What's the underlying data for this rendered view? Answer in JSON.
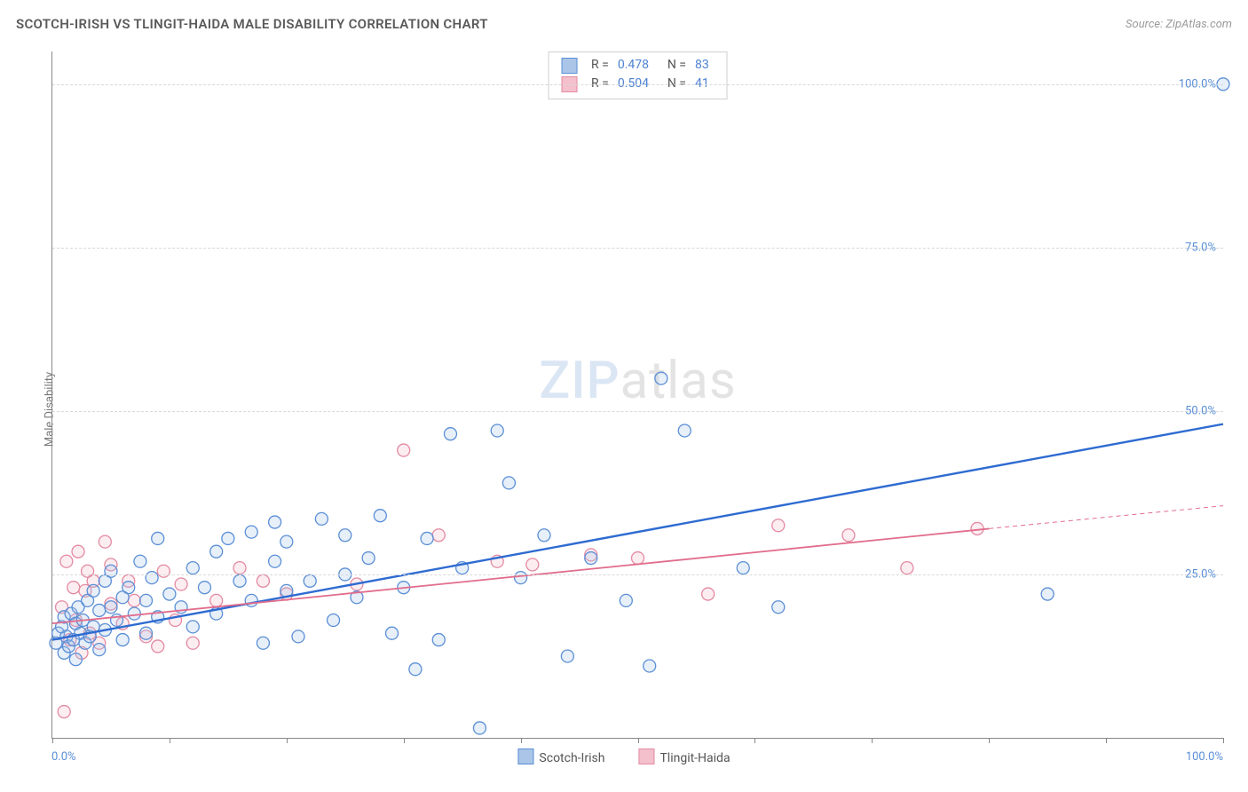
{
  "header": {
    "title": "SCOTCH-IRISH VS TLINGIT-HAIDA MALE DISABILITY CORRELATION CHART",
    "source": "Source: ZipAtlas.com"
  },
  "watermark": {
    "part1": "ZIP",
    "part2": "atlas"
  },
  "chart": {
    "type": "scatter",
    "ylabel": "Male Disability",
    "background_color": "#ffffff",
    "grid_color": "#d9d9d9",
    "axis_color": "#888888",
    "ylabel_color": "#787878",
    "tick_label_color": "#5b8fd6",
    "xlim": [
      0,
      100
    ],
    "ylim": [
      0,
      105
    ],
    "x_tick_positions": [
      0,
      10,
      20,
      30,
      40,
      50,
      60,
      70,
      80,
      90,
      100
    ],
    "x_axis_labels": {
      "left": "0.0%",
      "right": "100.0%"
    },
    "y_gridlines": [
      {
        "value": 25,
        "label": "25.0%"
      },
      {
        "value": 50,
        "label": "50.0%"
      },
      {
        "value": 75,
        "label": "75.0%"
      },
      {
        "value": 100,
        "label": "100.0%"
      }
    ],
    "marker": {
      "radius": 7,
      "stroke_width": 1.3,
      "fill_opacity": 0.28
    },
    "series": [
      {
        "name": "Scotch-Irish",
        "color_stroke": "#5b8fd6",
        "color_fill": "#aac5e8",
        "line_color": "#2e6bd1",
        "line_width": 2.4,
        "trend": {
          "x1": 0,
          "y1": 15.0,
          "x2": 100,
          "y2": 48.0
        },
        "extrap": null,
        "stats": {
          "R": "0.478",
          "N": "83"
        },
        "points": [
          [
            0.3,
            14.5
          ],
          [
            0.5,
            16.0
          ],
          [
            0.8,
            17.0
          ],
          [
            1.0,
            13.0
          ],
          [
            1.0,
            18.5
          ],
          [
            1.2,
            15.5
          ],
          [
            1.4,
            14.0
          ],
          [
            1.6,
            19.0
          ],
          [
            1.8,
            15.0
          ],
          [
            2.0,
            17.5
          ],
          [
            2.0,
            12.0
          ],
          [
            2.2,
            20.0
          ],
          [
            2.4,
            16.0
          ],
          [
            2.6,
            18.0
          ],
          [
            2.8,
            14.5
          ],
          [
            3.0,
            21.0
          ],
          [
            3.2,
            15.5
          ],
          [
            3.5,
            22.5
          ],
          [
            3.5,
            17.0
          ],
          [
            4.0,
            19.5
          ],
          [
            4.0,
            13.5
          ],
          [
            4.5,
            24.0
          ],
          [
            4.5,
            16.5
          ],
          [
            5.0,
            20.0
          ],
          [
            5.0,
            25.5
          ],
          [
            5.5,
            18.0
          ],
          [
            6.0,
            21.5
          ],
          [
            6.0,
            15.0
          ],
          [
            6.5,
            23.0
          ],
          [
            7.0,
            19.0
          ],
          [
            7.5,
            27.0
          ],
          [
            8.0,
            21.0
          ],
          [
            8.0,
            16.0
          ],
          [
            8.5,
            24.5
          ],
          [
            9.0,
            18.5
          ],
          [
            9.0,
            30.5
          ],
          [
            10,
            22.0
          ],
          [
            11,
            20.0
          ],
          [
            12,
            26.0
          ],
          [
            12,
            17.0
          ],
          [
            13,
            23.0
          ],
          [
            14,
            28.5
          ],
          [
            14,
            19.0
          ],
          [
            15,
            30.5
          ],
          [
            16,
            24.0
          ],
          [
            17,
            21.0
          ],
          [
            17,
            31.5
          ],
          [
            18,
            14.5
          ],
          [
            19,
            27.0
          ],
          [
            19,
            33.0
          ],
          [
            20,
            22.5
          ],
          [
            20,
            30.0
          ],
          [
            21,
            15.5
          ],
          [
            22,
            24.0
          ],
          [
            23,
            33.5
          ],
          [
            24,
            18.0
          ],
          [
            25,
            31.0
          ],
          [
            25,
            25.0
          ],
          [
            26,
            21.5
          ],
          [
            27,
            27.5
          ],
          [
            28,
            34.0
          ],
          [
            29,
            16.0
          ],
          [
            30,
            23.0
          ],
          [
            31,
            10.5
          ],
          [
            32,
            30.5
          ],
          [
            33,
            15.0
          ],
          [
            34,
            46.5
          ],
          [
            35,
            26.0
          ],
          [
            36.5,
            1.5
          ],
          [
            38,
            47.0
          ],
          [
            39,
            39.0
          ],
          [
            40,
            24.5
          ],
          [
            42,
            31.0
          ],
          [
            44,
            12.5
          ],
          [
            46,
            27.5
          ],
          [
            49,
            21.0
          ],
          [
            51,
            11.0
          ],
          [
            52,
            55.0
          ],
          [
            54,
            47.0
          ],
          [
            59,
            26.0
          ],
          [
            62,
            20.0
          ],
          [
            85,
            22.0
          ],
          [
            100,
            100.0
          ]
        ]
      },
      {
        "name": "Tlingit-Haida",
        "color_stroke": "#e48aa1",
        "color_fill": "#f3c0cc",
        "line_color": "#e16d8c",
        "line_width": 1.8,
        "trend": {
          "x1": 0,
          "y1": 17.5,
          "x2": 80,
          "y2": 32.0
        },
        "extrap": {
          "x1": 80,
          "y1": 32.0,
          "x2": 100,
          "y2": 35.5
        },
        "stats": {
          "R": "0.504",
          "N": "41"
        },
        "points": [
          [
            0.8,
            20.0
          ],
          [
            1.0,
            4.0
          ],
          [
            1.2,
            27.0
          ],
          [
            1.5,
            15.0
          ],
          [
            1.8,
            23.0
          ],
          [
            2.0,
            18.0
          ],
          [
            2.2,
            28.5
          ],
          [
            2.5,
            13.0
          ],
          [
            2.8,
            22.5
          ],
          [
            3.0,
            25.5
          ],
          [
            3.2,
            16.0
          ],
          [
            3.5,
            24.0
          ],
          [
            4.0,
            14.5
          ],
          [
            4.5,
            30.0
          ],
          [
            5.0,
            20.5
          ],
          [
            5.0,
            26.5
          ],
          [
            6.0,
            17.5
          ],
          [
            6.5,
            24.0
          ],
          [
            7.0,
            21.0
          ],
          [
            8.0,
            15.5
          ],
          [
            9.0,
            14.0
          ],
          [
            9.5,
            25.5
          ],
          [
            10.5,
            18.0
          ],
          [
            11,
            23.5
          ],
          [
            12,
            14.5
          ],
          [
            14,
            21.0
          ],
          [
            16,
            26.0
          ],
          [
            18,
            24.0
          ],
          [
            20,
            22.0
          ],
          [
            26,
            23.5
          ],
          [
            30,
            44.0
          ],
          [
            33,
            31.0
          ],
          [
            38,
            27.0
          ],
          [
            41,
            26.5
          ],
          [
            46,
            28.0
          ],
          [
            50,
            27.5
          ],
          [
            56,
            22.0
          ],
          [
            62,
            32.5
          ],
          [
            68,
            31.0
          ],
          [
            73,
            26.0
          ],
          [
            79,
            32.0
          ]
        ]
      }
    ],
    "bottom_legend": {
      "label_color": "#555555",
      "fontsize": 14
    },
    "stats_legend": {
      "border_color": "#d0d0d0",
      "bg": "#ffffff",
      "label_color": "#555555",
      "value_color": "#4d82d1",
      "labels": {
        "R": "R  =",
        "N": "N  ="
      }
    },
    "title_fontsize": 15,
    "source_fontsize": 13,
    "label_fontsize": 13
  }
}
